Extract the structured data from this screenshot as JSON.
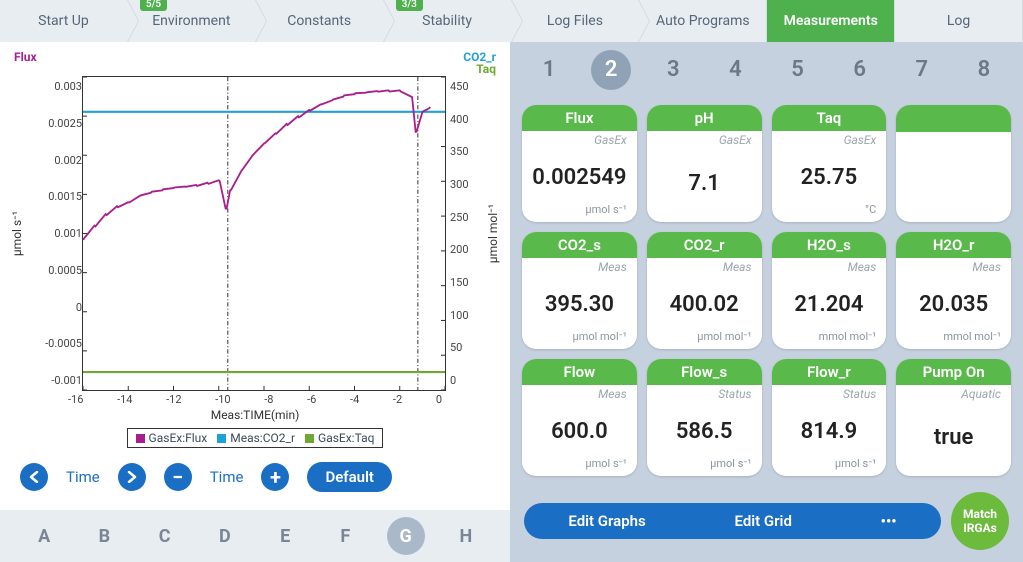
{
  "topbar": {
    "tabs": [
      {
        "label": "Start Up",
        "badge": null,
        "chev": true
      },
      {
        "label": "Environment",
        "badge": "5/5",
        "chev": true
      },
      {
        "label": "Constants",
        "badge": null,
        "chev": true
      },
      {
        "label": "Stability",
        "badge": "3/3",
        "chev": true
      },
      {
        "label": "Log Files",
        "badge": null,
        "chev": true
      },
      {
        "label": "Auto Programs",
        "badge": null,
        "chev": false
      },
      {
        "label": "Measurements",
        "badge": null,
        "chev": false,
        "active": true
      },
      {
        "label": "Log",
        "badge": null,
        "chev": false
      }
    ]
  },
  "chart": {
    "top_left_label": "Flux",
    "top_right_label1": "CO2_r",
    "top_right_label2": "Taq",
    "y1_label": "µmol s⁻¹",
    "y2_label": "µmol mol⁻¹",
    "x_label": "Meas:TIME(min)",
    "y1_ticks": [
      "0.003",
      "0.0025",
      "0.002",
      "0.0015",
      "0.001",
      "0.0005",
      "0",
      "-0.0005",
      "-0.001"
    ],
    "y2_ticks": [
      "450",
      "400",
      "350",
      "300",
      "250",
      "200",
      "150",
      "100",
      "50",
      "0"
    ],
    "x_ticks": [
      "-16",
      "-14",
      "-12",
      "-10",
      "-8",
      "-6",
      "-4",
      "-2",
      "0"
    ],
    "y1_min": -0.001,
    "y1_max": 0.003,
    "y2_min": 0,
    "y2_max": 450,
    "x_min": -16,
    "x_max": 0,
    "flux_color": "#a81e8c",
    "co2r_color": "#1fa0d8",
    "taq_color": "#6fa833",
    "co2r_value": 400,
    "taq_value": 25.75,
    "flux_series": [
      [
        -16,
        0.00092
      ],
      [
        -15.5,
        0.0011
      ],
      [
        -15,
        0.00125
      ],
      [
        -14.5,
        0.00135
      ],
      [
        -14,
        0.0014
      ],
      [
        -13.5,
        0.00148
      ],
      [
        -13,
        0.00152
      ],
      [
        -12.5,
        0.00155
      ],
      [
        -12,
        0.00158
      ],
      [
        -11.5,
        0.0016
      ],
      [
        -11,
        0.00162
      ],
      [
        -10.5,
        0.00165
      ],
      [
        -10,
        0.00168
      ],
      [
        -9.7,
        0.00132
      ],
      [
        -9.5,
        0.00155
      ],
      [
        -9,
        0.0018
      ],
      [
        -8.5,
        0.002
      ],
      [
        -8,
        0.00215
      ],
      [
        -7.5,
        0.00228
      ],
      [
        -7,
        0.0024
      ],
      [
        -6.5,
        0.0025
      ],
      [
        -6,
        0.00258
      ],
      [
        -5.5,
        0.00265
      ],
      [
        -5,
        0.0027
      ],
      [
        -4.5,
        0.00275
      ],
      [
        -4,
        0.00278
      ],
      [
        -3.5,
        0.0028
      ],
      [
        -3,
        0.00282
      ],
      [
        -2.5,
        0.00283
      ],
      [
        -2,
        0.00283
      ],
      [
        -1.5,
        0.00275
      ],
      [
        -1.3,
        0.0023
      ],
      [
        -1,
        0.00255
      ],
      [
        -0.7,
        0.0026
      ]
    ],
    "vlines_x": [
      -9.6,
      -1.2
    ],
    "legend": [
      {
        "color": "#a81e8c",
        "label": "GasEx:Flux"
      },
      {
        "color": "#1fa0d8",
        "label": "Meas:CO2_r"
      },
      {
        "color": "#6fa833",
        "label": "GasEx:Taq"
      }
    ]
  },
  "time_controls": {
    "label1": "Time",
    "label2": "Time",
    "default": "Default"
  },
  "letters": {
    "items": [
      "A",
      "B",
      "C",
      "D",
      "E",
      "F",
      "G",
      "H"
    ],
    "active": "G"
  },
  "numbers": {
    "items": [
      "1",
      "2",
      "3",
      "4",
      "5",
      "6",
      "7",
      "8"
    ],
    "active": "2"
  },
  "cards": [
    {
      "hdr": "Flux",
      "sub": "GasEx",
      "val": "0.002549",
      "unit": "µmol s⁻¹"
    },
    {
      "hdr": "pH",
      "sub": "GasEx",
      "val": "7.1",
      "unit": ""
    },
    {
      "hdr": "Taq",
      "sub": "GasEx",
      "val": "25.75",
      "unit": "°C"
    },
    {
      "hdr": "",
      "sub": "",
      "val": "",
      "unit": "",
      "empty": true
    },
    {
      "hdr": "CO2_s",
      "sub": "Meas",
      "val": "395.30",
      "unit": "µmol mol⁻¹"
    },
    {
      "hdr": "CO2_r",
      "sub": "Meas",
      "val": "400.02",
      "unit": "µmol mol⁻¹"
    },
    {
      "hdr": "H2O_s",
      "sub": "Meas",
      "val": "21.204",
      "unit": "mmol mol⁻¹"
    },
    {
      "hdr": "H2O_r",
      "sub": "Meas",
      "val": "20.035",
      "unit": "mmol mol⁻¹"
    },
    {
      "hdr": "Flow",
      "sub": "Meas",
      "val": "600.0",
      "unit": "µmol s⁻¹"
    },
    {
      "hdr": "Flow_s",
      "sub": "Status",
      "val": "586.5",
      "unit": "µmol s⁻¹"
    },
    {
      "hdr": "Flow_r",
      "sub": "Status",
      "val": "814.9",
      "unit": "µmol s⁻¹"
    },
    {
      "hdr": "Pump On",
      "sub": "Aquatic",
      "val": "true",
      "unit": ""
    }
  ],
  "bottom": {
    "edit_graphs": "Edit Graphs",
    "edit_grid": "Edit Grid",
    "more": "•••",
    "match": "Match IRGAs"
  }
}
